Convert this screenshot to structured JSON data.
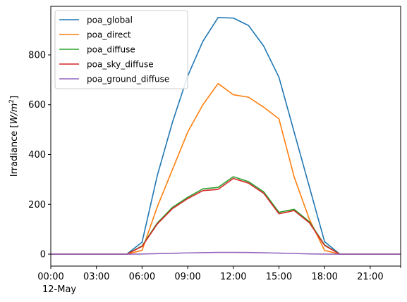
{
  "chart_data": {
    "type": "line",
    "title": "",
    "xlabel": "",
    "ylabel_prefix": "Irradiance [",
    "ylabel_unit_base": "W/m",
    "ylabel_unit_exp": "2",
    "ylabel_suffix": "]",
    "xlim": [
      0,
      23
    ],
    "ylim": [
      -48,
      995
    ],
    "x": [
      0,
      1,
      2,
      3,
      4,
      5,
      6,
      7,
      8,
      9,
      10,
      11,
      12,
      13,
      14,
      15,
      16,
      17,
      18,
      19,
      20,
      21,
      22,
      23
    ],
    "x_ticks": [
      {
        "value": 0,
        "label": "00:00"
      },
      {
        "value": 3,
        "label": "03:00"
      },
      {
        "value": 6,
        "label": "06:00"
      },
      {
        "value": 9,
        "label": "09:00"
      },
      {
        "value": 12,
        "label": "12:00"
      },
      {
        "value": 15,
        "label": "15:00"
      },
      {
        "value": 18,
        "label": "18:00"
      },
      {
        "value": 21,
        "label": "21:00"
      }
    ],
    "x_minor_ticks": [
      23
    ],
    "x_date_label": "12-May",
    "y_ticks": [
      {
        "value": 0,
        "label": "0"
      },
      {
        "value": 200,
        "label": "200"
      },
      {
        "value": 400,
        "label": "400"
      },
      {
        "value": 600,
        "label": "600"
      },
      {
        "value": 800,
        "label": "800"
      }
    ],
    "grid": false,
    "legend_position": "top-left",
    "series": [
      {
        "name": "poa_global",
        "color": "#1f77b4",
        "values": [
          0,
          0,
          0,
          0,
          0,
          0,
          48,
          315,
          530,
          715,
          855,
          950,
          948,
          918,
          835,
          710,
          490,
          270,
          50,
          0,
          0,
          0,
          0,
          0
        ]
      },
      {
        "name": "poa_direct",
        "color": "#ff7f0e",
        "values": [
          0,
          0,
          0,
          0,
          0,
          0,
          15,
          190,
          340,
          490,
          600,
          685,
          640,
          630,
          590,
          543,
          310,
          140,
          15,
          0,
          0,
          0,
          0,
          0
        ]
      },
      {
        "name": "poa_diffuse",
        "color": "#2ca02c",
        "values": [
          0,
          0,
          0,
          0,
          0,
          0,
          33,
          125,
          188,
          228,
          262,
          268,
          311,
          291,
          250,
          168,
          180,
          130,
          37,
          0,
          0,
          0,
          0,
          0
        ]
      },
      {
        "name": "poa_sky_diffuse",
        "color": "#d62728",
        "values": [
          0,
          0,
          0,
          0,
          0,
          0,
          31,
          121,
          183,
          223,
          255,
          260,
          304,
          285,
          244,
          162,
          175,
          126,
          35,
          0,
          0,
          0,
          0,
          0
        ]
      },
      {
        "name": "poa_ground_diffuse",
        "color": "#9467bd",
        "values": [
          0,
          0,
          0,
          0,
          0,
          0,
          0.5,
          2,
          3.5,
          5,
          6,
          7,
          7,
          6.5,
          5.5,
          4,
          2.5,
          1,
          0.3,
          0,
          0,
          0,
          0,
          0
        ]
      }
    ]
  }
}
